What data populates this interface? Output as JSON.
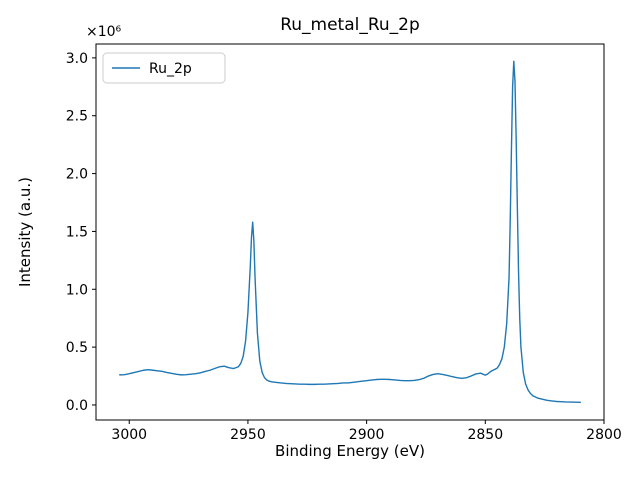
{
  "chart_data": {
    "type": "line",
    "title": "Ru_metal_Ru_2p",
    "xlabel": "Binding Energy (eV)",
    "ylabel": "Intensity (a.u.)",
    "offset_text": "×10⁶",
    "x_axis_inverted": true,
    "grid": false,
    "xlim": [
      3014,
      2800
    ],
    "ylim": [
      -0.13,
      3.12
    ],
    "y_units_multiplier": 1000000,
    "x_ticks": [
      3000,
      2950,
      2900,
      2850,
      2800
    ],
    "x_tick_labels": [
      "3000",
      "2950",
      "2900",
      "2850",
      "2800"
    ],
    "y_ticks": [
      0.0,
      0.5,
      1.0,
      1.5,
      2.0,
      2.5,
      3.0
    ],
    "y_tick_labels": [
      "0.0",
      "0.5",
      "1.0",
      "1.5",
      "2.0",
      "2.5",
      "3.0"
    ],
    "legend": {
      "position": "upper left",
      "entries": [
        {
          "label": "Ru_2p",
          "color": "#1f77b4"
        }
      ]
    },
    "series": [
      {
        "name": "Ru_2p",
        "color": "#1f77b4",
        "x": [
          3004,
          3002,
          3000,
          2998,
          2996,
          2994,
          2992,
          2990,
          2988,
          2986,
          2984,
          2982,
          2980,
          2978,
          2976,
          2974,
          2972,
          2970,
          2968,
          2966,
          2964,
          2962,
          2960,
          2958,
          2956,
          2954,
          2953,
          2952,
          2951,
          2950,
          2949,
          2948.5,
          2948,
          2947.5,
          2947,
          2946,
          2945,
          2944,
          2943,
          2942,
          2941,
          2940,
          2938,
          2936,
          2934,
          2932,
          2930,
          2928,
          2926,
          2924,
          2922,
          2920,
          2918,
          2916,
          2914,
          2912,
          2910,
          2908,
          2906,
          2904,
          2902,
          2900,
          2898,
          2896,
          2894,
          2892,
          2890,
          2888,
          2886,
          2884,
          2882,
          2880,
          2878,
          2876,
          2874,
          2872,
          2870,
          2868,
          2866,
          2864,
          2862,
          2860,
          2858,
          2856,
          2854,
          2852,
          2851,
          2850,
          2849,
          2848,
          2847,
          2846,
          2845,
          2844,
          2843,
          2842,
          2841,
          2840,
          2839.5,
          2839,
          2838.5,
          2838,
          2837.5,
          2837,
          2836.5,
          2836,
          2835.5,
          2835,
          2834,
          2833,
          2832,
          2831,
          2830,
          2828,
          2826,
          2824,
          2822,
          2820,
          2818,
          2816,
          2814,
          2812,
          2810
        ],
        "y": [
          0.26,
          0.262,
          0.27,
          0.28,
          0.29,
          0.3,
          0.305,
          0.3,
          0.295,
          0.29,
          0.28,
          0.272,
          0.265,
          0.26,
          0.262,
          0.266,
          0.27,
          0.278,
          0.29,
          0.3,
          0.315,
          0.33,
          0.335,
          0.322,
          0.315,
          0.33,
          0.36,
          0.42,
          0.55,
          0.8,
          1.2,
          1.45,
          1.58,
          1.42,
          1.1,
          0.62,
          0.38,
          0.28,
          0.235,
          0.215,
          0.205,
          0.2,
          0.195,
          0.19,
          0.186,
          0.184,
          0.182,
          0.18,
          0.18,
          0.178,
          0.178,
          0.18,
          0.18,
          0.182,
          0.184,
          0.186,
          0.19,
          0.19,
          0.195,
          0.2,
          0.205,
          0.21,
          0.215,
          0.22,
          0.222,
          0.222,
          0.22,
          0.216,
          0.212,
          0.21,
          0.21,
          0.212,
          0.218,
          0.23,
          0.25,
          0.264,
          0.27,
          0.264,
          0.255,
          0.245,
          0.236,
          0.23,
          0.235,
          0.25,
          0.268,
          0.275,
          0.266,
          0.258,
          0.268,
          0.285,
          0.298,
          0.308,
          0.318,
          0.35,
          0.4,
          0.5,
          0.7,
          1.1,
          1.6,
          2.2,
          2.75,
          2.97,
          2.8,
          2.3,
          1.7,
          1.15,
          0.75,
          0.5,
          0.28,
          0.18,
          0.13,
          0.1,
          0.08,
          0.06,
          0.05,
          0.04,
          0.035,
          0.03,
          0.028,
          0.026,
          0.025,
          0.024,
          0.023
        ]
      }
    ]
  }
}
